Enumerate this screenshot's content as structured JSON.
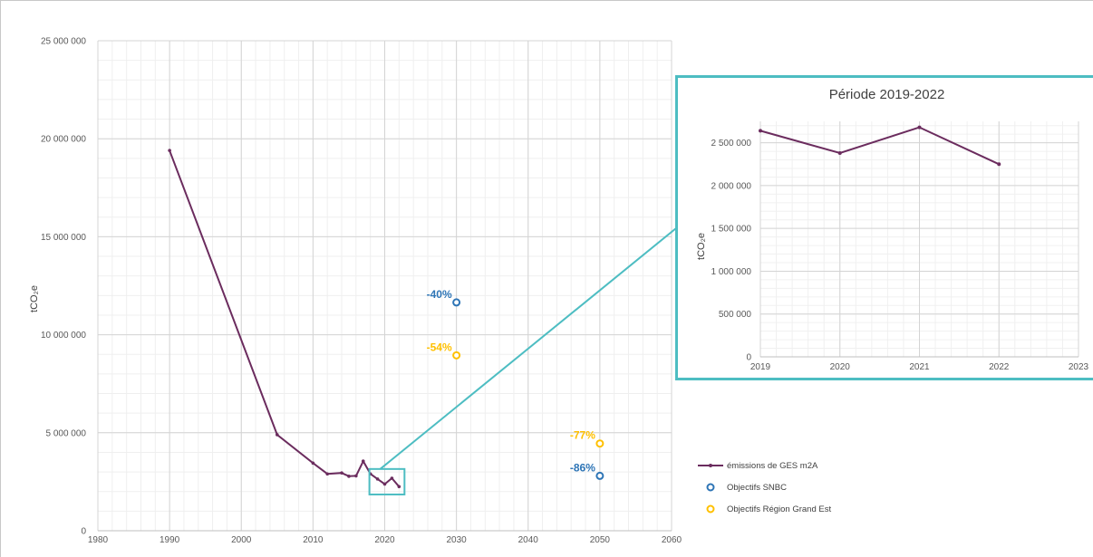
{
  "chart_data": [
    {
      "type": "line",
      "ylabel": "tCO₂e",
      "xlim": [
        1980,
        2060
      ],
      "ylim": [
        0,
        25000000
      ],
      "x_ticks": [
        "1980",
        "1990",
        "2000",
        "2010",
        "2020",
        "2030",
        "2040",
        "2050",
        "2060"
      ],
      "y_ticks": [
        "0",
        "5 000 000",
        "10 000 000",
        "15 000 000",
        "20 000 000",
        "25 000 000"
      ],
      "grid": true,
      "legend_position": "right",
      "series": [
        {
          "name": "émissions de GES m2A",
          "kind": "line",
          "color": "#6b2c5e",
          "points": [
            [
              1990,
              19400000
            ],
            [
              2005,
              4900000
            ],
            [
              2010,
              3450000
            ],
            [
              2012,
              2900000
            ],
            [
              2014,
              2950000
            ],
            [
              2015,
              2780000
            ],
            [
              2016,
              2800000
            ],
            [
              2017,
              3550000
            ],
            [
              2018,
              2900000
            ],
            [
              2019,
              2640000
            ],
            [
              2020,
              2380000
            ],
            [
              2021,
              2680000
            ],
            [
              2022,
              2250000
            ]
          ]
        },
        {
          "name": "Objectifs SNBC",
          "kind": "scatter",
          "color": "#2e75b6",
          "points": [
            [
              2030,
              11650000
            ],
            [
              2050,
              2800000
            ]
          ],
          "labels": [
            "-40%",
            "-86%"
          ]
        },
        {
          "name": "Objectifs Région Grand Est",
          "kind": "scatter",
          "color": "#ffc000",
          "points": [
            [
              2030,
              8950000
            ],
            [
              2050,
              4450000
            ]
          ],
          "labels": [
            "-54%",
            "-77%"
          ]
        }
      ],
      "highlight_box": {
        "x": [
          2019,
          2022
        ],
        "y": [
          1850000,
          3150000
        ],
        "color": "#4dbdc2"
      }
    },
    {
      "type": "line",
      "title": "Période 2019-2022",
      "ylabel": "tCO₂e",
      "xlim": [
        2019,
        2023
      ],
      "ylim": [
        0,
        2750000
      ],
      "x_ticks": [
        "2019",
        "2020",
        "2021",
        "2022",
        "2023"
      ],
      "y_ticks": [
        "0",
        "500 000",
        "1 000 000",
        "1 500 000",
        "2 000 000",
        "2 500 000"
      ],
      "grid": true,
      "series": [
        {
          "name": "émissions de GES m2A",
          "color": "#6b2c5e",
          "points": [
            [
              2019,
              2640000
            ],
            [
              2020,
              2380000
            ],
            [
              2021,
              2680000
            ],
            [
              2022,
              2250000
            ]
          ]
        }
      ]
    }
  ]
}
